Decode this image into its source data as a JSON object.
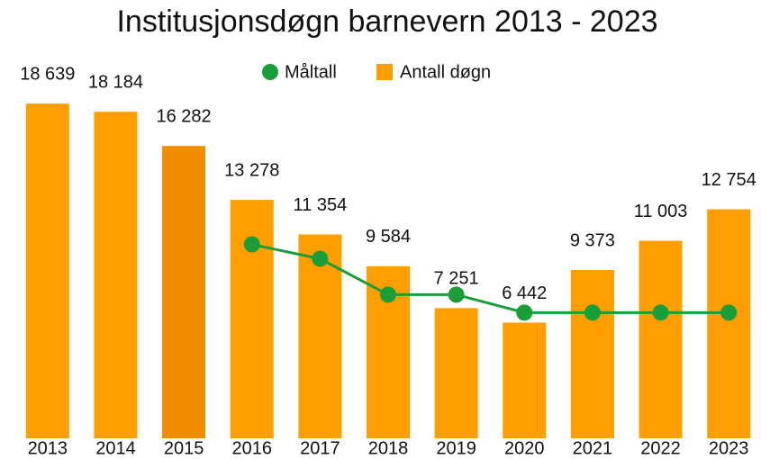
{
  "chart_data": {
    "type": "bar",
    "title": "Institusjonsdøgn barnevern 2013 - 2023",
    "categories": [
      "2013",
      "2014",
      "2015",
      "2016",
      "2017",
      "2018",
      "2019",
      "2020",
      "2021",
      "2022",
      "2023"
    ],
    "series": [
      {
        "name": "Antall døgn",
        "type": "bar",
        "color": "#ff9e00",
        "colors": [
          "#ff9e00",
          "#ff9e00",
          "#f08c00",
          "#ff9e00",
          "#ff9e00",
          "#ff9e00",
          "#ff9e00",
          "#ff9e00",
          "#ff9e00",
          "#ff9e00",
          "#ff9e00"
        ],
        "values": [
          18639,
          18184,
          16282,
          13278,
          11354,
          9584,
          7251,
          6442,
          9373,
          11003,
          12754
        ],
        "value_labels": [
          "18 639",
          "18 184",
          "16 282",
          "13 278",
          "11 354",
          "9 584",
          "7 251",
          "6 442",
          "9 373",
          "11 003",
          "12 754"
        ]
      },
      {
        "name": "Måltall",
        "type": "line",
        "color": "#1a9e3a",
        "values": [
          null,
          null,
          null,
          10800,
          10000,
          8000,
          8000,
          7000,
          7000,
          7000,
          7000
        ]
      }
    ],
    "ylim": [
      0,
      20000
    ],
    "legend": "top"
  }
}
